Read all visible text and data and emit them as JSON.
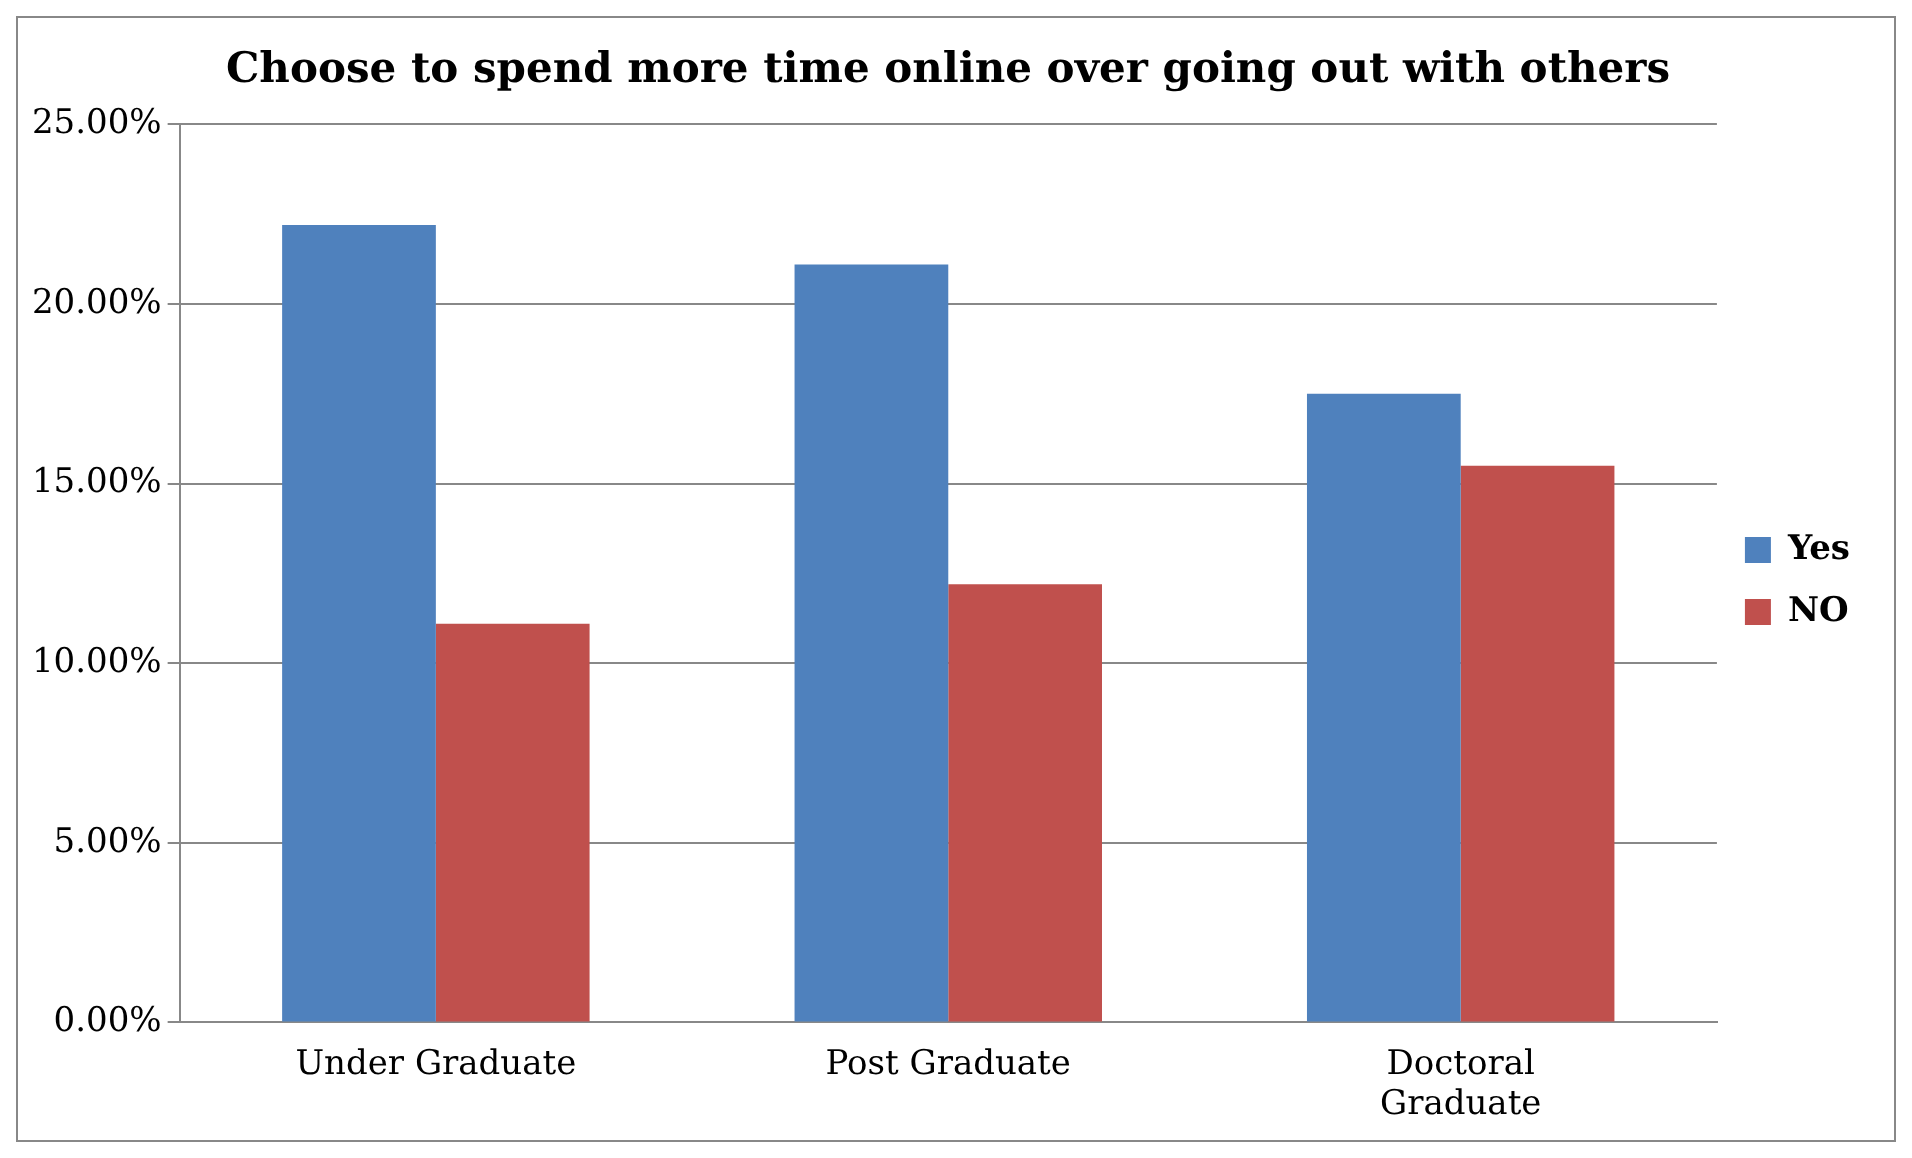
{
  "chart_data": {
    "type": "bar",
    "title": "Choose to spend more time online over going out with others",
    "categories": [
      "Under Graduate",
      "Post Graduate",
      "Doctoral Graduate"
    ],
    "series": [
      {
        "name": "Yes",
        "color": "#4f81bd",
        "values": [
          22.2,
          21.1,
          17.5
        ]
      },
      {
        "name": "NO",
        "color": "#c0504d",
        "values": [
          11.1,
          12.2,
          15.5
        ]
      }
    ],
    "ylim": [
      0,
      25
    ],
    "yticks": [
      {
        "value": 0,
        "label": "0.00%"
      },
      {
        "value": 5,
        "label": "5.00%"
      },
      {
        "value": 10,
        "label": "10.00%"
      },
      {
        "value": 15,
        "label": "15.00%"
      },
      {
        "value": 20,
        "label": "20.00%"
      },
      {
        "value": 25,
        "label": "25.00%"
      }
    ],
    "grid": "y",
    "legend": "right"
  }
}
